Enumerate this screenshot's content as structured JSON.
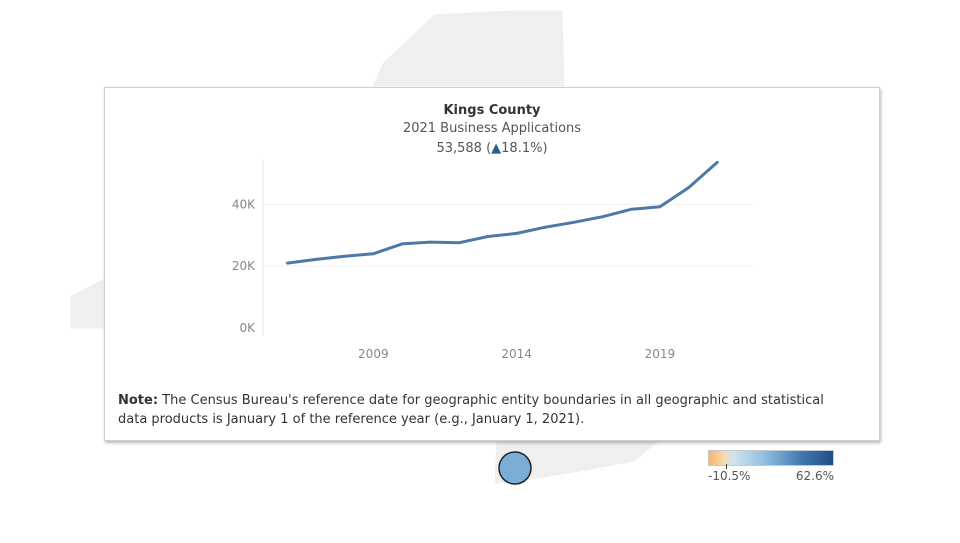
{
  "tooltip": {
    "title": "Kings County",
    "subtitle": "2021 Business Applications",
    "value": "53,588",
    "change": "18.1%",
    "note_label": "Note:",
    "note_text": " The Census Bureau's reference date for geographic entity boundaries in all geographic and statistical data products is January 1 of the reference year (e.g., January 1, 2021)."
  },
  "legend": {
    "min": "-10.5%",
    "max": "62.6%"
  },
  "colors": {
    "line": "#4e79a7",
    "map_fill": "#efefef",
    "marker": "#7aaed6"
  },
  "chart_data": {
    "type": "line",
    "x": [
      2006,
      2007,
      2008,
      2009,
      2010,
      2011,
      2012,
      2013,
      2014,
      2015,
      2016,
      2017,
      2018,
      2019,
      2020,
      2021
    ],
    "values": [
      21000,
      22200,
      23200,
      24000,
      27200,
      27800,
      27600,
      29600,
      30600,
      32600,
      34200,
      36000,
      38400,
      39200,
      45400,
      53588
    ],
    "xticks": [
      "2009",
      "2014",
      "2019"
    ],
    "yticks": [
      "0K",
      "20K",
      "40K"
    ],
    "ylim": [
      0,
      55000
    ],
    "grid": true
  }
}
